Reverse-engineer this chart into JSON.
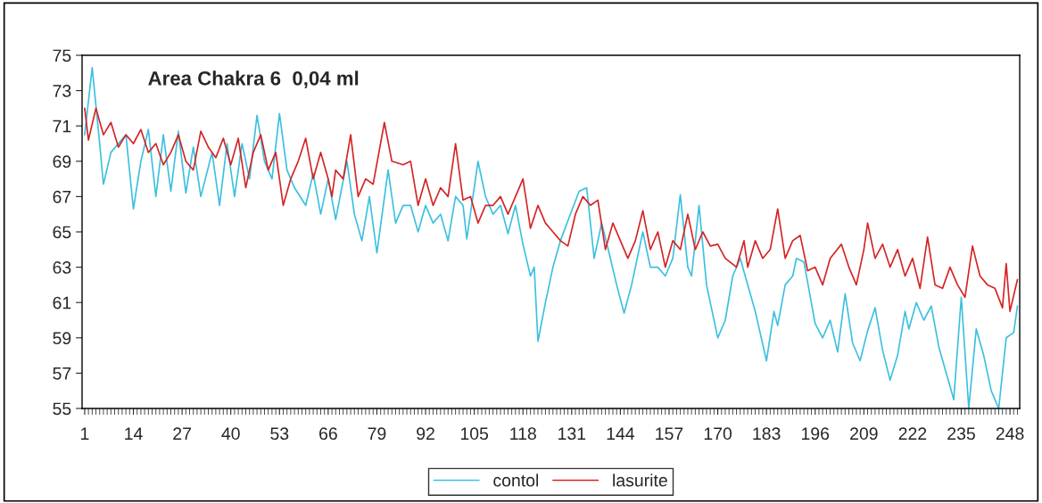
{
  "chart_data": {
    "type": "line",
    "title": "Area Chakra 6  0,04 ml",
    "xlim": [
      0.3,
      250.6
    ],
    "xticks": [
      1,
      14,
      27,
      40,
      53,
      66,
      79,
      92,
      105,
      118,
      131,
      144,
      157,
      170,
      183,
      196,
      209,
      222,
      235,
      248
    ],
    "ylim": [
      55,
      75
    ],
    "yticks": [
      55,
      57,
      59,
      61,
      63,
      65,
      67,
      69,
      71,
      73,
      75
    ],
    "grid": false,
    "legend": "bottom",
    "marker": "none",
    "line_style": "solid",
    "series": [
      {
        "name": "contol",
        "color": "#3cc0e0",
        "x": [
          1,
          3,
          5,
          6,
          8,
          12,
          14,
          16,
          18,
          20,
          22,
          24,
          26,
          28,
          30,
          32,
          35,
          37,
          39,
          41,
          43,
          45,
          47,
          49,
          51,
          53,
          55,
          57,
          60,
          62,
          64,
          66,
          68,
          71,
          73,
          75,
          77,
          79,
          82,
          84,
          86,
          88,
          90,
          92,
          94,
          96,
          98,
          100,
          102,
          103,
          106,
          108,
          110,
          112,
          114,
          116,
          118,
          120,
          121,
          122,
          124,
          126,
          128,
          131,
          133,
          135,
          137,
          139,
          141,
          143,
          145,
          147,
          150,
          152,
          154,
          156,
          158,
          160,
          162,
          163,
          165,
          167,
          170,
          172,
          174,
          176,
          178,
          180,
          183,
          185,
          186,
          188,
          190,
          191,
          193,
          196,
          198,
          200,
          202,
          204,
          206,
          208,
          210,
          212,
          214,
          216,
          218,
          220,
          221,
          223,
          225,
          227,
          229,
          231,
          233,
          235,
          237,
          239,
          241,
          243,
          245,
          246,
          247,
          249,
          250
        ],
        "values": [
          70.5,
          74.3,
          70,
          67.7,
          69.5,
          70.5,
          66.3,
          69,
          70.8,
          67,
          70.5,
          67.3,
          70.7,
          67.2,
          69.8,
          67,
          69.5,
          66.5,
          70,
          67,
          70,
          68,
          71.6,
          69,
          68,
          71.7,
          68.5,
          67.5,
          66.5,
          68.3,
          66,
          68,
          65.7,
          69,
          66,
          64.5,
          67,
          63.8,
          68.5,
          65.5,
          66.5,
          66.5,
          65,
          66.5,
          65.5,
          66,
          64.5,
          67,
          66.5,
          64.6,
          69,
          67,
          66,
          66.5,
          64.9,
          66.5,
          64.3,
          62.5,
          63,
          58.8,
          61,
          63,
          64.5,
          66.2,
          67.3,
          67.5,
          63.5,
          65.5,
          63.8,
          62,
          60.4,
          62,
          65,
          63,
          63,
          62.5,
          63.5,
          67.1,
          63,
          62.5,
          66.5,
          62,
          59,
          60,
          62.5,
          63.5,
          62,
          60.5,
          57.7,
          60.5,
          59.7,
          62,
          62.5,
          63.5,
          63.3,
          59.8,
          59,
          60,
          58.2,
          61.5,
          58.7,
          57.7,
          59.4,
          60.7,
          58.3,
          56.6,
          58,
          60.5,
          59.5,
          61,
          60,
          60.8,
          58.5,
          57,
          55.5,
          61.3,
          55,
          59.5,
          58,
          56,
          55,
          57,
          59,
          59.3,
          60.8
        ]
      },
      {
        "name": "lasurite",
        "color": "#d42424",
        "x": [
          1,
          2,
          4,
          6,
          8,
          10,
          12,
          14,
          16,
          18,
          20,
          22,
          24,
          26,
          28,
          30,
          32,
          34,
          36,
          38,
          40,
          42,
          44,
          46,
          48,
          50,
          52,
          54,
          56,
          58,
          60,
          62,
          64,
          66,
          67,
          68,
          70,
          72,
          74,
          76,
          78,
          81,
          83,
          86,
          88,
          90,
          92,
          94,
          96,
          98,
          100,
          102,
          104,
          106,
          108,
          110,
          112,
          114,
          116,
          118,
          120,
          122,
          124,
          126,
          128,
          130,
          132,
          134,
          136,
          138,
          140,
          142,
          144,
          146,
          148,
          150,
          152,
          154,
          156,
          158,
          160,
          162,
          164,
          166,
          168,
          170,
          172,
          175,
          177,
          178,
          180,
          182,
          184,
          186,
          188,
          190,
          192,
          194,
          196,
          198,
          200,
          203,
          205,
          207,
          209,
          210,
          212,
          214,
          216,
          218,
          220,
          222,
          224,
          226,
          228,
          230,
          232,
          234,
          236,
          238,
          240,
          242,
          244,
          246,
          247,
          248,
          250
        ],
        "values": [
          72,
          70.2,
          72,
          70.5,
          71.2,
          69.8,
          70.5,
          70,
          70.8,
          69.5,
          70,
          68.8,
          69.5,
          70.5,
          69,
          68.5,
          70.7,
          69.8,
          69.2,
          70.3,
          68.8,
          70.3,
          67.5,
          69.5,
          70.5,
          68.5,
          69.5,
          66.5,
          68,
          69,
          70.3,
          68,
          69.5,
          68,
          67,
          68.5,
          68,
          70.5,
          67,
          68,
          67.7,
          71.2,
          69,
          68.8,
          69,
          66.5,
          68,
          66.5,
          67.5,
          67,
          70,
          66.8,
          67,
          65.5,
          66.5,
          66.5,
          67,
          66,
          67,
          68,
          65.2,
          66.5,
          65.5,
          65,
          64.5,
          64.2,
          66,
          67,
          66.5,
          66.8,
          64,
          65.5,
          64.5,
          63.5,
          64.5,
          66.2,
          64,
          65,
          63,
          64.5,
          64,
          66,
          64,
          65,
          64.2,
          64.3,
          63.5,
          63,
          64.5,
          63,
          64.5,
          63.5,
          64,
          66.3,
          63.5,
          64.5,
          64.8,
          62.8,
          63,
          62,
          63.5,
          64.3,
          63,
          62,
          64,
          65.5,
          63.5,
          64.3,
          63,
          64,
          62.5,
          63.5,
          61.8,
          64.7,
          62,
          61.8,
          63,
          62,
          61.3,
          64.2,
          62.5,
          62,
          61.8,
          60.7,
          63.2,
          60.5,
          62.3
        ]
      }
    ]
  }
}
